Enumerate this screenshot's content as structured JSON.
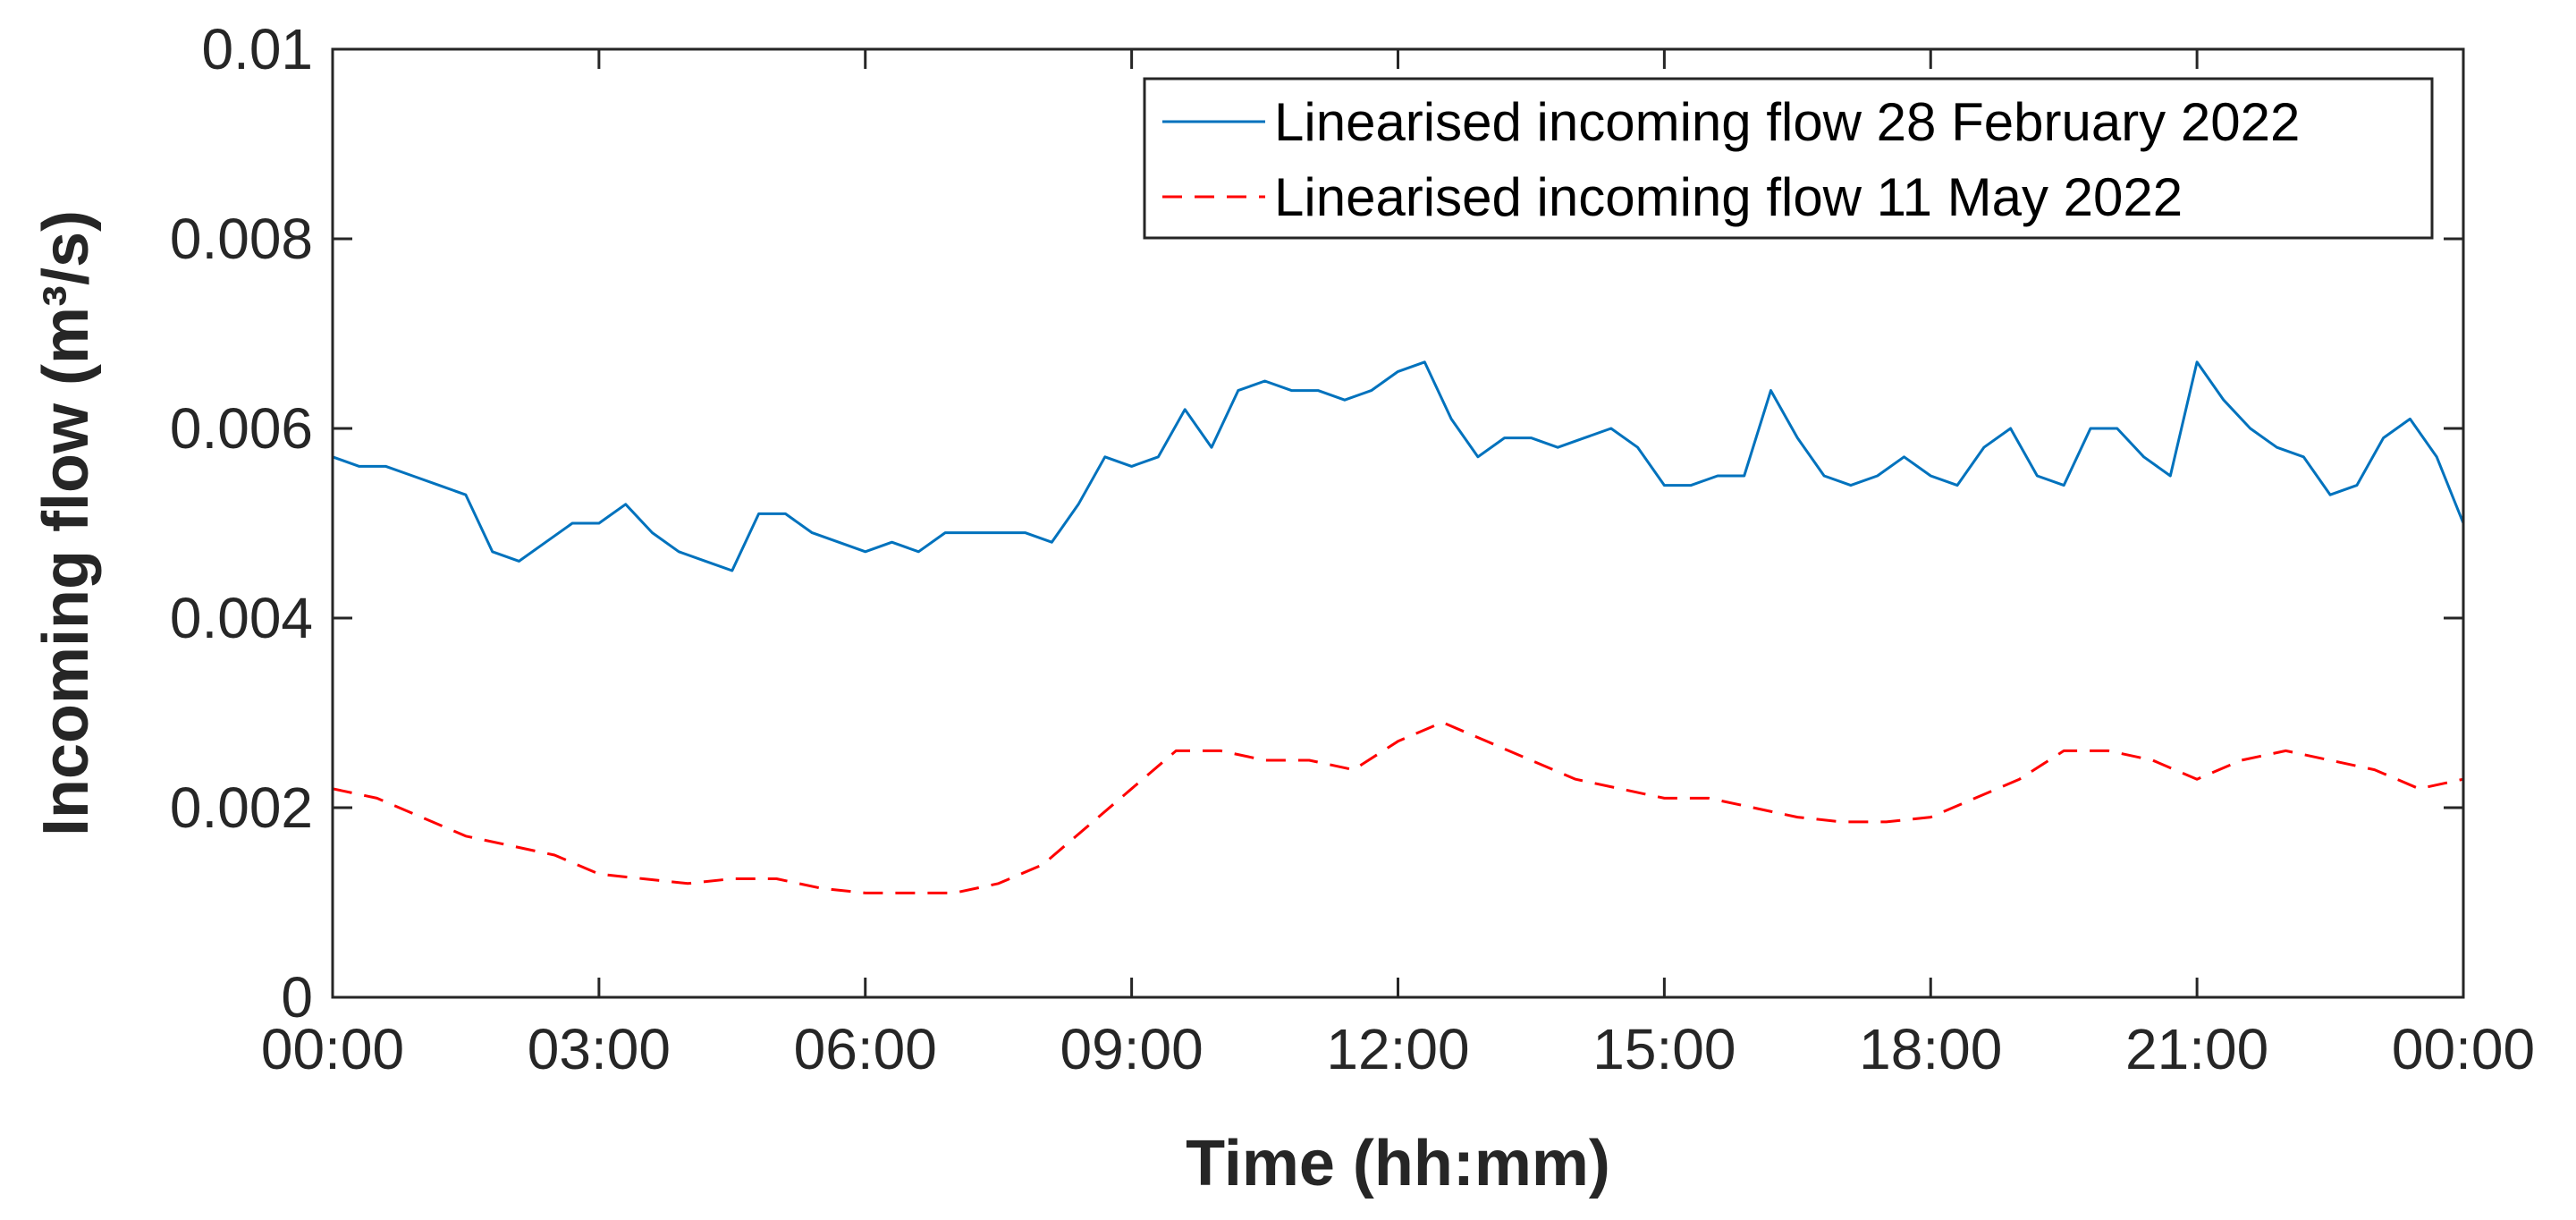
{
  "chart_data": {
    "type": "line",
    "title": "",
    "xlabel": "Time (hh:mm)",
    "ylabel": "Incoming flow (m³/s)",
    "xlim": [
      0,
      24
    ],
    "ylim": [
      0,
      0.01
    ],
    "x_ticks": [
      0,
      3,
      6,
      9,
      12,
      15,
      18,
      21,
      24
    ],
    "x_tick_labels": [
      "00:00",
      "03:00",
      "06:00",
      "09:00",
      "12:00",
      "15:00",
      "18:00",
      "21:00",
      "00:00"
    ],
    "y_ticks": [
      0,
      0.002,
      0.004,
      0.006,
      0.008,
      0.01
    ],
    "y_tick_labels": [
      "0",
      "0.002",
      "0.004",
      "0.006",
      "0.008",
      "0.01"
    ],
    "grid": false,
    "legend_position": "top-right",
    "series": [
      {
        "name": "Linearised incoming flow 28 February 2022",
        "color": "#0072BD",
        "style": "solid",
        "x": [
          0,
          0.3,
          0.6,
          0.9,
          1.2,
          1.5,
          1.8,
          2.1,
          2.4,
          2.7,
          3.0,
          3.3,
          3.6,
          3.9,
          4.2,
          4.5,
          4.8,
          5.1,
          5.4,
          5.7,
          6.0,
          6.3,
          6.6,
          6.9,
          7.2,
          7.5,
          7.8,
          8.1,
          8.4,
          8.7,
          9.0,
          9.3,
          9.6,
          9.9,
          10.2,
          10.5,
          10.8,
          11.1,
          11.4,
          11.7,
          12.0,
          12.3,
          12.6,
          12.9,
          13.2,
          13.5,
          13.8,
          14.1,
          14.4,
          14.7,
          15.0,
          15.3,
          15.6,
          15.9,
          16.2,
          16.5,
          16.8,
          17.1,
          17.4,
          17.7,
          18.0,
          18.3,
          18.6,
          18.9,
          19.2,
          19.5,
          19.8,
          20.1,
          20.4,
          20.7,
          21.0,
          21.3,
          21.6,
          21.9,
          22.2,
          22.5,
          22.8,
          23.1,
          23.4,
          23.7,
          24.0
        ],
        "values": [
          0.0057,
          0.0056,
          0.0056,
          0.0055,
          0.0054,
          0.0053,
          0.0047,
          0.0046,
          0.0048,
          0.005,
          0.005,
          0.0052,
          0.0049,
          0.0047,
          0.0046,
          0.0045,
          0.0051,
          0.0051,
          0.0049,
          0.0048,
          0.0047,
          0.0048,
          0.0047,
          0.0049,
          0.0049,
          0.0049,
          0.0049,
          0.0048,
          0.0052,
          0.0057,
          0.0056,
          0.0057,
          0.0062,
          0.0058,
          0.0064,
          0.0065,
          0.0064,
          0.0064,
          0.0063,
          0.0064,
          0.0066,
          0.0067,
          0.0061,
          0.0057,
          0.0059,
          0.0059,
          0.0058,
          0.0059,
          0.006,
          0.0058,
          0.0054,
          0.0054,
          0.0055,
          0.0055,
          0.0064,
          0.0059,
          0.0055,
          0.0054,
          0.0055,
          0.0057,
          0.0055,
          0.0054,
          0.0058,
          0.006,
          0.0055,
          0.0054,
          0.006,
          0.006,
          0.0057,
          0.0055,
          0.0067,
          0.0063,
          0.006,
          0.0058,
          0.0057,
          0.0053,
          0.0054,
          0.0059,
          0.0061,
          0.0057,
          0.005
        ]
      },
      {
        "name": "Linearised incoming flow 11 May 2022",
        "color": "#FF0000",
        "style": "dashed",
        "x": [
          0,
          0.5,
          1.0,
          1.5,
          2.0,
          2.5,
          3.0,
          3.5,
          4.0,
          4.5,
          5.0,
          5.5,
          6.0,
          6.5,
          7.0,
          7.5,
          8.0,
          8.5,
          9.0,
          9.5,
          10.0,
          10.5,
          11.0,
          11.5,
          12.0,
          12.5,
          13.0,
          13.5,
          14.0,
          14.5,
          15.0,
          15.5,
          16.0,
          16.5,
          17.0,
          17.5,
          18.0,
          18.5,
          19.0,
          19.5,
          20.0,
          20.5,
          21.0,
          21.5,
          22.0,
          22.5,
          23.0,
          23.5,
          24.0
        ],
        "values": [
          0.0022,
          0.0021,
          0.0019,
          0.0017,
          0.0016,
          0.0015,
          0.0013,
          0.00125,
          0.0012,
          0.00125,
          0.00125,
          0.00115,
          0.0011,
          0.0011,
          0.0011,
          0.0012,
          0.0014,
          0.0018,
          0.0022,
          0.0026,
          0.0026,
          0.0025,
          0.0025,
          0.0024,
          0.0027,
          0.0029,
          0.0027,
          0.0025,
          0.0023,
          0.0022,
          0.0021,
          0.0021,
          0.002,
          0.0019,
          0.00185,
          0.00185,
          0.0019,
          0.0021,
          0.0023,
          0.0026,
          0.0026,
          0.0025,
          0.0023,
          0.0025,
          0.0026,
          0.0025,
          0.0024,
          0.0022,
          0.0023
        ]
      }
    ]
  }
}
